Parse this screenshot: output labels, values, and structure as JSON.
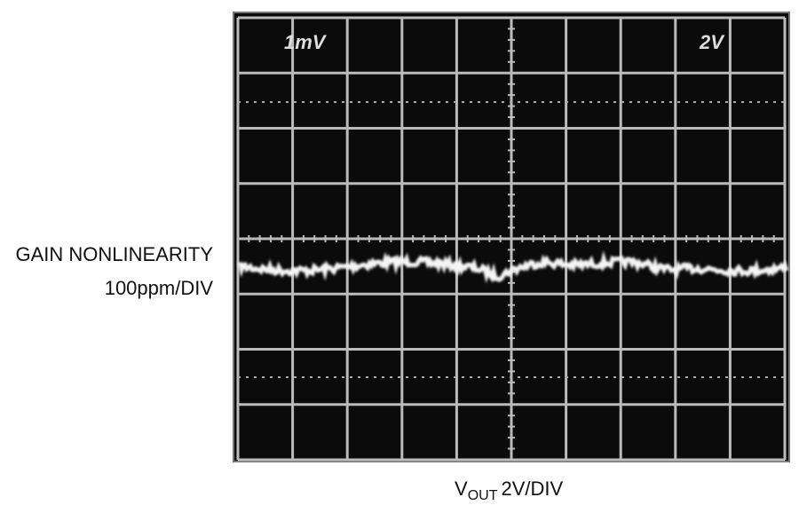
{
  "y_label": {
    "line1": "GAIN NONLINEARITY",
    "line2": "100ppm/DIV"
  },
  "x_label": {
    "main": "V",
    "subscript": "OUT",
    "scale": "2V/DIV"
  },
  "screen": {
    "left_label": "1mV",
    "right_label": "2V"
  }
}
